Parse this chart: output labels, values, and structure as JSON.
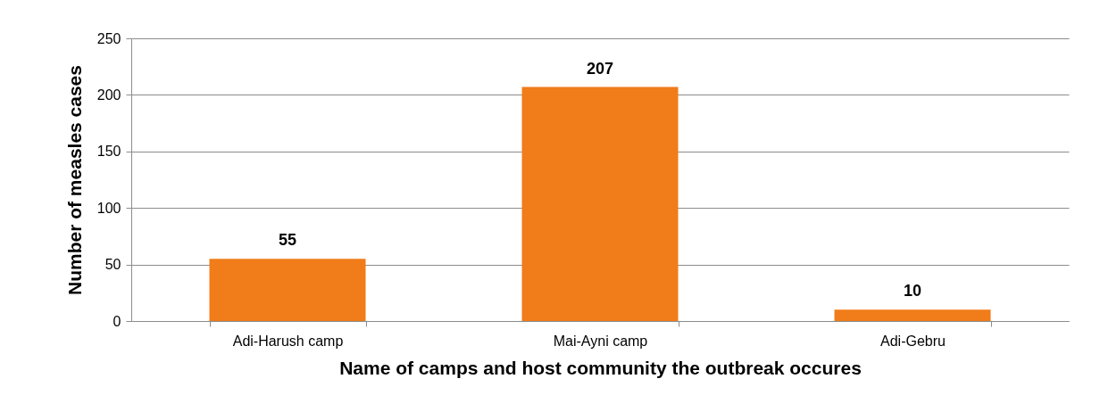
{
  "chart_data": {
    "type": "bar",
    "xlabel": "Name of camps and host community the outbreak occures",
    "ylabel": "Number of measles cases",
    "categories": [
      "Adi-Harush camp",
      "Mai-Ayni camp",
      "Adi-Gebru"
    ],
    "values": [
      55,
      207,
      10
    ],
    "color": "#f07c1a",
    "ylim": [
      0,
      250
    ],
    "yticks": [
      0,
      50,
      100,
      150,
      200,
      250
    ],
    "grid": "y",
    "data_labels": true
  }
}
